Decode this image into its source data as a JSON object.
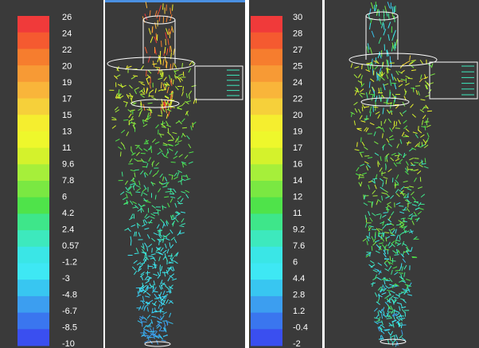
{
  "panels": [
    {
      "colorbar": {
        "labels": [
          "26",
          "24",
          "22",
          "20",
          "19",
          "17",
          "15",
          "13",
          "11",
          "9.6",
          "7.8",
          "6",
          "4.2",
          "2.4",
          "0.57",
          "-1.2",
          "-3",
          "-4.8",
          "-6.7",
          "-8.5",
          "-10"
        ],
        "colors": [
          "#f03a3a",
          "#f55a30",
          "#f67d2e",
          "#f79a35",
          "#f9b53a",
          "#f6d03a",
          "#f5ee2f",
          "#eef72c",
          "#d4f22c",
          "#a6ef3a",
          "#7ae842",
          "#4fe34a",
          "#3ee68a",
          "#3de9bd",
          "#3ae6e6",
          "#3ee8f4",
          "#38c6f1",
          "#3c9ef0",
          "#3a76ef",
          "#3a4ff0"
        ]
      }
    },
    {
      "colorbar": {
        "labels": [
          "30",
          "28",
          "27",
          "25",
          "24",
          "22",
          "20",
          "19",
          "17",
          "16",
          "14",
          "12",
          "11",
          "9.2",
          "7.6",
          "6",
          "4.4",
          "2.8",
          "1.2",
          "-0.4",
          "-2"
        ],
        "colors": [
          "#f03a3a",
          "#f55a30",
          "#f67d2e",
          "#f79a35",
          "#f9b53a",
          "#f6d03a",
          "#f5ee2f",
          "#eef72c",
          "#d4f22c",
          "#a6ef3a",
          "#7ae842",
          "#4fe34a",
          "#3ee68a",
          "#3de9bd",
          "#3ae6e6",
          "#3ee8f4",
          "#38c6f1",
          "#3c9ef0",
          "#3a76ef",
          "#3a4ff0"
        ]
      }
    }
  ]
}
